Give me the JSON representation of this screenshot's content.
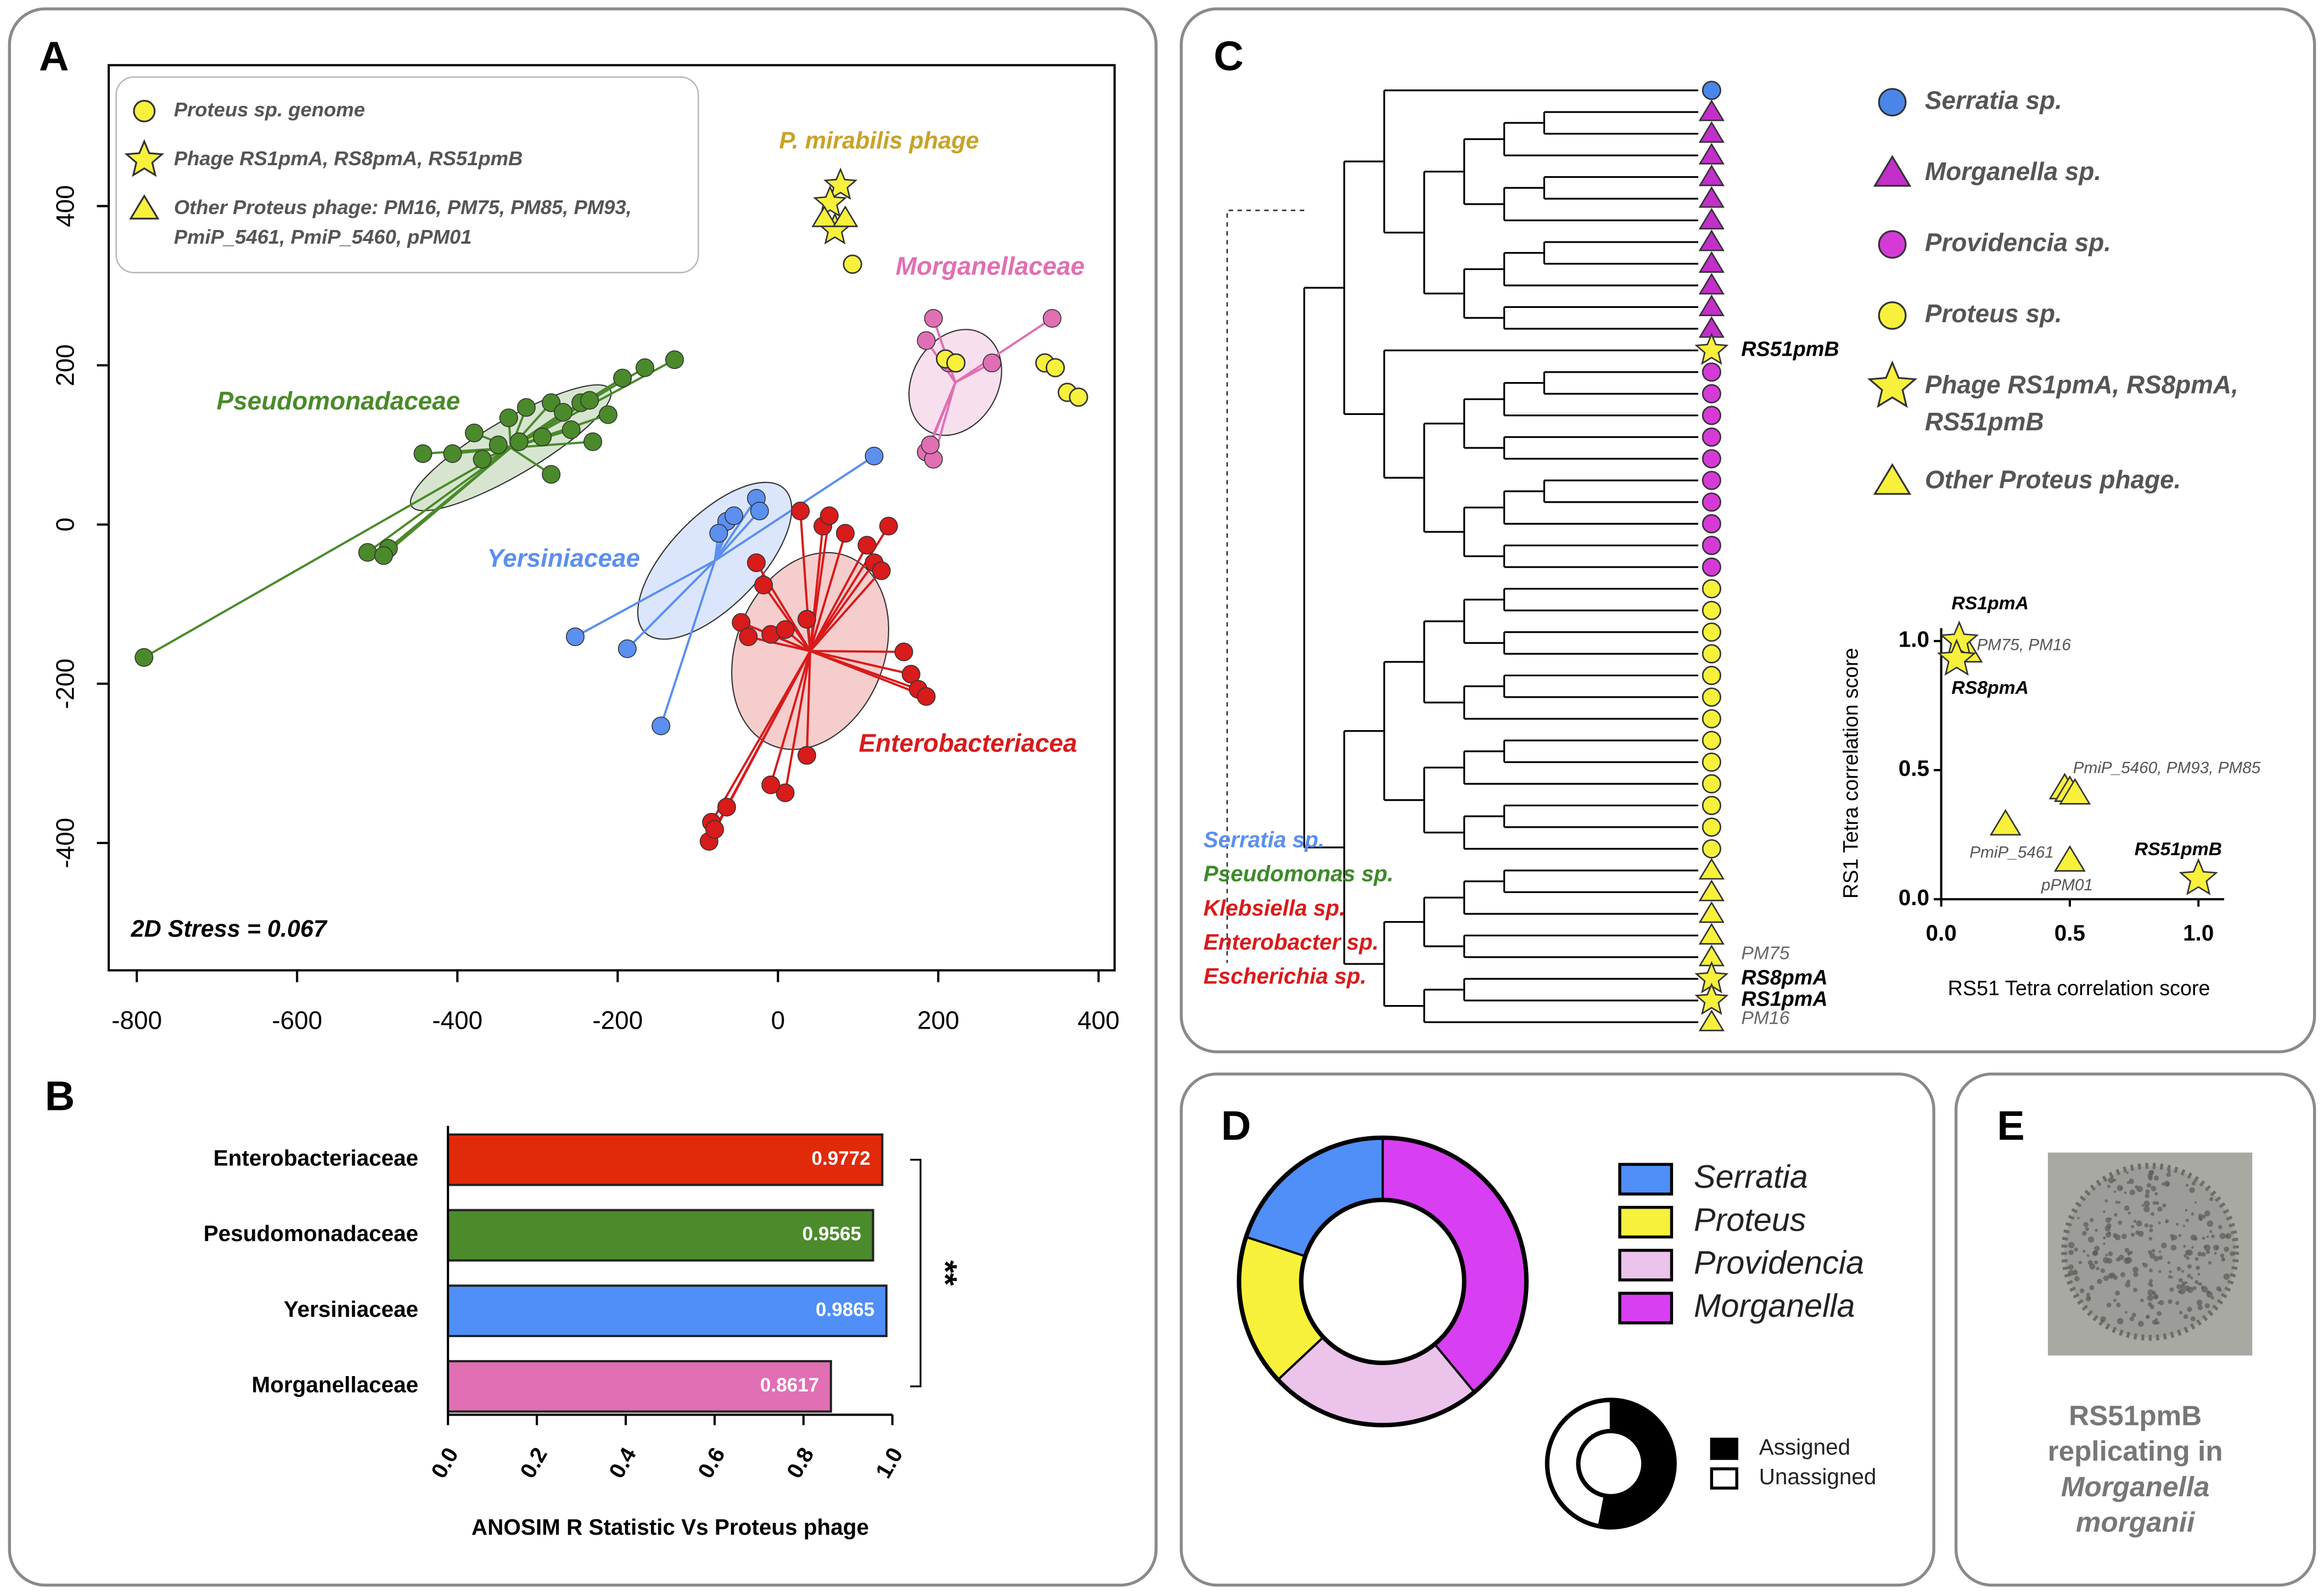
{
  "panels": [
    "A",
    "B",
    "C",
    "D",
    "E"
  ],
  "chart_data": [
    {
      "type": "scatter",
      "xlim": [
        -835,
        420
      ],
      "ylim": [
        -560,
        577
      ],
      "xticks": [
        -800,
        -600,
        -400,
        -200,
        0,
        200,
        400
      ],
      "yticks": [
        -400,
        -200,
        0,
        200,
        400
      ],
      "annotation": "2D Stress = 0.067",
      "group_label": "P. mirabilis phage",
      "series": [
        {
          "name": "Pseudomonadaceae",
          "color": "#4a8a2a",
          "marker": "circle",
          "spider": true,
          "x": [
            -791,
            -512,
            -486,
            -492,
            -443,
            -406,
            -379,
            -349,
            -336,
            -314,
            -283,
            -268,
            -246,
            -235,
            -283,
            -231,
            -194,
            -166,
            -129,
            -258,
            -294,
            -212,
            -323,
            -369
          ],
          "y": [
            -167,
            -35,
            -30,
            -39,
            89,
            89,
            115,
            100,
            134,
            147,
            153,
            141,
            153,
            156,
            63,
            104,
            184,
            197,
            207,
            119,
            110,
            138,
            104,
            82
          ]
        },
        {
          "name": "Yersiniaceae",
          "color": "#5b8ff0",
          "marker": "circle",
          "spider": true,
          "x": [
            120,
            -253,
            -188,
            -146,
            -64,
            -55,
            -27,
            -23,
            -74
          ],
          "y": [
            86,
            -141,
            -156,
            -253,
            4,
            11,
            33,
            17,
            -11
          ]
        },
        {
          "name": "Enterobacteriacea",
          "color": "#d81b1b",
          "marker": "circle",
          "spider": true,
          "x": [
            28,
            56,
            84,
            111,
            120,
            129,
            -27,
            -18,
            -46,
            -37,
            -9,
            9,
            36,
            157,
            166,
            175,
            185,
            36,
            9,
            -9,
            -64,
            -83,
            -86,
            -79,
            138,
            64
          ],
          "y": [
            17,
            -2,
            -11,
            -26,
            -48,
            -58,
            -48,
            -76,
            -123,
            -141,
            -138,
            -132,
            -119,
            -160,
            -188,
            -207,
            -216,
            -290,
            -337,
            -327,
            -355,
            -374,
            -398,
            -383,
            -2,
            11
          ]
        },
        {
          "name": "Morganellaceae",
          "color": "#e06fb3",
          "marker": "circle",
          "spider": true,
          "x": [
            194,
            342,
            185,
            213,
            185,
            194,
            190,
            267
          ],
          "y": [
            259,
            259,
            231,
            203,
            91,
            82,
            100,
            203
          ]
        },
        {
          "name": "Proteus sp. genome",
          "color": "#f7f13c",
          "marker": "circle",
          "x": [
            93,
            209,
            222,
            333,
            346,
            361,
            375
          ],
          "y": [
            327,
            208,
            203,
            203,
            197,
            166,
            160
          ]
        },
        {
          "name": "Phage RS1pmA, RS8pmA, RS51pmB",
          "color": "#f7f13c",
          "marker": "star",
          "x": [
            78,
            65,
            71
          ],
          "y": [
            426,
            404,
            370
          ]
        },
        {
          "name": [
            "Other Proteus phage: PM16, PM75, PM85, PM93,",
            "PmiP_5461, PmiP_5460, pPM01"
          ],
          "color": "#f7f13c",
          "marker": "triangle",
          "x": [
            58,
            84
          ],
          "y": [
            385,
            385
          ]
        }
      ]
    },
    {
      "type": "bar",
      "orientation": "horizontal",
      "categories": [
        "Enterobacteriaceae",
        "Pesudomonadaceae",
        "Yersiniaceae",
        "Morganellaceae"
      ],
      "values": [
        0.9772,
        0.9565,
        0.9865,
        0.8617
      ],
      "colors": [
        "#e02a0a",
        "#4b8b2b",
        "#4f8ff7",
        "#e06fb3"
      ],
      "xlim": [
        0,
        1
      ],
      "xticks": [
        {
          "value": 0,
          "label": "0.0"
        },
        0.2,
        0.4,
        0.6,
        0.8,
        {
          "value": 1,
          "label": "1.0"
        }
      ],
      "xlabel": "ANOSIM R Statistic Vs Proteus phage",
      "annotation": "**"
    },
    {
      "type": "scatter",
      "xlim": [
        0,
        1.1
      ],
      "ylim": [
        0,
        1.05
      ],
      "xticks": [
        {
          "value": 0,
          "label": "0.0"
        },
        0.5,
        {
          "value": 1,
          "label": "1.0"
        }
      ],
      "yticks": [
        {
          "value": 0,
          "label": "0.0"
        },
        0.5,
        {
          "value": 1,
          "label": "1.0"
        }
      ],
      "xlabel": "RS51 Tetra correlation score",
      "ylabel": "RS1 Tetra correlation score",
      "series": [
        {
          "marker": "triangle",
          "color": "#f7f13c",
          "x": [
            0.09,
            0.1,
            0.48,
            0.5,
            0.52,
            0.25,
            0.5
          ],
          "y": [
            0.97,
            0.96,
            0.43,
            0.42,
            0.41,
            0.29,
            0.15
          ]
        },
        {
          "marker": "star",
          "color": "#f7f13c",
          "x": [
            0.07,
            0.06,
            1.0
          ],
          "y": [
            1.0,
            0.93,
            0.08
          ]
        }
      ],
      "point_labels": [
        {
          "text": "RS1pmA",
          "bold": true
        },
        {
          "text": "PM75, PM16"
        },
        {
          "text": "RS8pmA",
          "bold": true
        },
        {
          "text": "PmiP_5460, PM93, PM85"
        },
        {
          "text": "PmiP_5461"
        },
        {
          "text": "pPM01"
        },
        {
          "text": "RS51pmB",
          "bold": true
        }
      ]
    },
    {
      "type": "donut",
      "direction": "counterclockwise",
      "categories": [
        "Serratia",
        "Proteus",
        "Providencia",
        "Morganella"
      ],
      "values": [
        20,
        17,
        24,
        39
      ],
      "colors": [
        "#4f8ff7",
        "#f7f13c",
        "#ebc3eb",
        "#d83ff2"
      ]
    },
    {
      "type": "donut",
      "direction": "clockwise",
      "categories": [
        "Assigned",
        "Unassigned"
      ],
      "values": [
        53,
        47
      ],
      "colors": [
        "#000000",
        "#ffffff"
      ]
    }
  ],
  "tree": {
    "legend": [
      {
        "label": [
          "Serratia sp."
        ],
        "shape": "circle",
        "color": "#4a86e8"
      },
      {
        "label": [
          "Morganella sp."
        ],
        "shape": "triangle",
        "color": "#c22fc9"
      },
      {
        "label": [
          "Providencia sp."
        ],
        "shape": "circle",
        "color": "#d63ad6"
      },
      {
        "label": [
          "Proteus sp."
        ],
        "shape": "circle",
        "color": "#f7f13c"
      },
      {
        "label": [
          "Phage RS1pmA, RS8pmA,",
          "RS51pmB"
        ],
        "shape": "star",
        "color": "#f7f13c"
      },
      {
        "label": [
          "Other Proteus phage."
        ],
        "shape": "triangle",
        "color": "#f7f13c"
      }
    ],
    "tips": [
      0,
      1,
      1,
      1,
      1,
      1,
      1,
      1,
      1,
      1,
      1,
      1,
      4,
      2,
      2,
      2,
      2,
      2,
      2,
      2,
      2,
      2,
      2,
      3,
      3,
      3,
      3,
      3,
      3,
      3,
      3,
      3,
      3,
      3,
      3,
      3,
      5,
      5,
      5,
      5,
      5,
      4,
      4,
      5
    ],
    "tip_labels": [
      {
        "tip": 12,
        "text": "RS51pmB",
        "bold": true
      },
      {
        "tip": 40,
        "text": "PM75"
      },
      {
        "tip": 41,
        "text": "RS8pmA",
        "bold": true
      },
      {
        "tip": 42,
        "text": "RS1pmA",
        "bold": true
      },
      {
        "tip": 43,
        "text": "PM16"
      }
    ],
    "families": [
      {
        "text": "Serratia sp.",
        "color": "#5b8ff0"
      },
      {
        "text": "Pseudomonas sp.",
        "color": "#3e8a2a"
      },
      {
        "text": "Klebsiella sp.",
        "color": "#d81b1b"
      },
      {
        "text": "Enterobacter sp.",
        "color": "#d81b1b"
      },
      {
        "text": "Escherichia sp.",
        "color": "#d81b1b"
      }
    ]
  },
  "image_caption": [
    {
      "text": "RS51pmB",
      "italic": false
    },
    {
      "text": "replicating in",
      "italic": false
    },
    {
      "text": "Morganella",
      "italic": true
    },
    {
      "text": "morganii",
      "italic": true
    }
  ]
}
